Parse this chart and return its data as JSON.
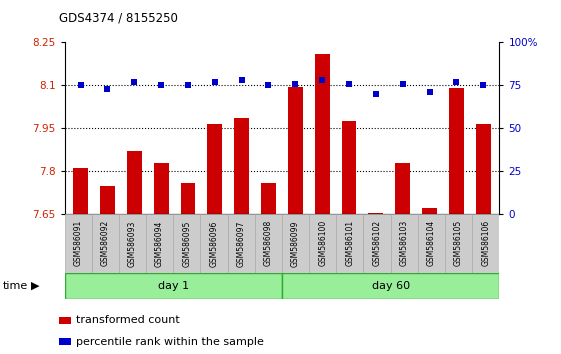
{
  "title": "GDS4374 / 8155250",
  "samples": [
    "GSM586091",
    "GSM586092",
    "GSM586093",
    "GSM586094",
    "GSM586095",
    "GSM586096",
    "GSM586097",
    "GSM586098",
    "GSM586099",
    "GSM586100",
    "GSM586101",
    "GSM586102",
    "GSM586103",
    "GSM586104",
    "GSM586105",
    "GSM586106"
  ],
  "bar_values": [
    7.81,
    7.75,
    7.87,
    7.83,
    7.76,
    7.965,
    7.985,
    7.76,
    8.095,
    8.21,
    7.975,
    7.655,
    7.83,
    7.67,
    8.09,
    7.965
  ],
  "dot_values": [
    75,
    73,
    77,
    75,
    75,
    77,
    78,
    75,
    76,
    78,
    76,
    70,
    76,
    71,
    77,
    75
  ],
  "bar_color": "#cc0000",
  "dot_color": "#0000cc",
  "ylim_left": [
    7.65,
    8.25
  ],
  "ylim_right": [
    0,
    100
  ],
  "yticks_left": [
    7.65,
    7.8,
    7.95,
    8.1,
    8.25
  ],
  "yticks_right": [
    0,
    25,
    50,
    75,
    100
  ],
  "ytick_labels_right": [
    "0",
    "25",
    "50",
    "75",
    "100%"
  ],
  "hlines": [
    7.8,
    7.95,
    8.1
  ],
  "group_labels": [
    "day 1",
    "day 60"
  ],
  "group_color": "#99ee99",
  "group_border": "#33aa33",
  "xlabel": "time",
  "legend_bar": "transformed count",
  "legend_dot": "percentile rank within the sample",
  "bg_color": "#ffffff",
  "tick_label_color_left": "#cc2200",
  "tick_label_color_right": "#0000cc",
  "xtick_bg": "#cccccc",
  "xtick_border": "#aaaaaa"
}
